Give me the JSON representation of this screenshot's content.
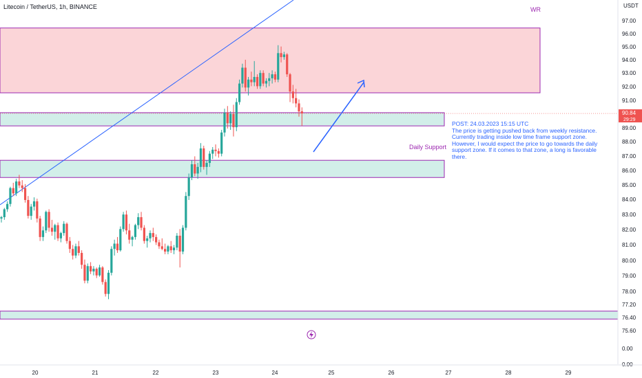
{
  "header": {
    "symbol_title": "Litecoin / TetherUS, 1h, BINANCE"
  },
  "annotations": {
    "zone_wr_label": "WR",
    "zone_daily_label": "Daily Support",
    "note_line1": "POST: 24.03.2023 15:15 UTC",
    "note_body": "The price is getting pushed back from weekly resistance. Currently trading inside low time frame support zone. However, I would expect the price to go towards the daily support zone. If it comes to that zone, a long is favorable there.",
    "price_tag_value": "90.84",
    "price_tag_countdown": "29:29"
  },
  "colors": {
    "up": "#26a69a",
    "down": "#ef5350",
    "resistance_fill": "#fbd5d8",
    "support_fill": "#d2eee9",
    "zone_border": "#9c27b0",
    "trendline": "#2962ff",
    "note": "#2962ff"
  },
  "chart_data": {
    "type": "candlestick",
    "title": "Litecoin / TetherUS, 1h, BINANCE",
    "x_ticks": [
      "20",
      "21",
      "22",
      "23",
      "24",
      "25",
      "26",
      "27",
      "28",
      "29"
    ],
    "y_axis_unit": "USDT",
    "y_ticks": [
      "97.00",
      "96.00",
      "95.00",
      "94.00",
      "93.00",
      "92.00",
      "91.00",
      "90.00",
      "89.00",
      "88.00",
      "87.00",
      "86.00",
      "85.00",
      "84.00",
      "83.00",
      "82.00",
      "81.00",
      "80.00",
      "79.00",
      "78.00",
      "77.20",
      "76.40",
      "75.60",
      "0.00",
      "0.00"
    ],
    "zones": [
      {
        "label": "WR",
        "type": "resistance",
        "from": 92.4,
        "to": 97.3
      },
      {
        "label": "",
        "type": "support",
        "from": 89.9,
        "to": 90.9
      },
      {
        "label": "Daily Support",
        "type": "support",
        "from": 86.0,
        "to": 87.3
      },
      {
        "label": "",
        "type": "support",
        "from": 75.3,
        "to": 75.9
      }
    ],
    "current_price": 90.84,
    "candles": [
      [
        82.9,
        83.1,
        82.6,
        83.0
      ],
      [
        83.0,
        83.7,
        82.8,
        83.6
      ],
      [
        83.6,
        84.2,
        83.4,
        84.0
      ],
      [
        84.0,
        85.3,
        83.8,
        85.2
      ],
      [
        85.2,
        85.6,
        84.6,
        84.8
      ],
      [
        84.8,
        85.9,
        84.6,
        85.7
      ],
      [
        85.7,
        86.2,
        85.2,
        85.4
      ],
      [
        85.4,
        85.8,
        84.9,
        85.2
      ],
      [
        85.2,
        85.5,
        84.1,
        84.3
      ],
      [
        84.3,
        84.6,
        82.9,
        83.1
      ],
      [
        83.1,
        84.0,
        82.8,
        83.8
      ],
      [
        83.8,
        84.5,
        83.5,
        84.2
      ],
      [
        84.2,
        84.4,
        82.6,
        82.9
      ],
      [
        82.9,
        83.1,
        81.2,
        81.5
      ],
      [
        81.5,
        82.3,
        81.2,
        82.0
      ],
      [
        82.0,
        83.5,
        81.8,
        83.4
      ],
      [
        83.4,
        83.6,
        81.9,
        82.2
      ],
      [
        82.2,
        82.8,
        81.6,
        81.9
      ],
      [
        81.9,
        82.5,
        81.3,
        82.4
      ],
      [
        82.4,
        82.6,
        81.2,
        81.4
      ],
      [
        81.4,
        81.9,
        81.1,
        81.8
      ],
      [
        81.8,
        82.7,
        81.6,
        82.5
      ],
      [
        82.5,
        82.6,
        81.0,
        81.2
      ],
      [
        81.2,
        81.5,
        80.3,
        80.6
      ],
      [
        80.6,
        80.9,
        79.8,
        80.1
      ],
      [
        80.1,
        81.0,
        79.9,
        80.8
      ],
      [
        80.8,
        81.2,
        80.1,
        80.3
      ],
      [
        80.3,
        80.5,
        79.1,
        79.4
      ],
      [
        79.4,
        79.8,
        78.0,
        78.2
      ],
      [
        78.2,
        79.5,
        78.0,
        79.3
      ],
      [
        79.3,
        79.6,
        78.7,
        78.9
      ],
      [
        78.9,
        79.3,
        78.6,
        79.1
      ],
      [
        79.1,
        79.2,
        78.4,
        78.6
      ],
      [
        78.6,
        79.4,
        78.5,
        79.2
      ],
      [
        79.2,
        79.3,
        77.9,
        78.1
      ],
      [
        78.1,
        78.3,
        77.0,
        77.2
      ],
      [
        77.2,
        79.0,
        76.8,
        78.8
      ],
      [
        78.8,
        80.8,
        78.6,
        80.6
      ],
      [
        80.6,
        81.3,
        80.1,
        81.0
      ],
      [
        81.0,
        81.5,
        80.3,
        80.5
      ],
      [
        80.5,
        82.3,
        80.4,
        82.1
      ],
      [
        82.1,
        83.4,
        81.9,
        83.2
      ],
      [
        83.2,
        83.5,
        81.7,
        82.0
      ],
      [
        82.0,
        82.5,
        81.0,
        81.3
      ],
      [
        81.3,
        81.6,
        80.8,
        81.5
      ],
      [
        81.5,
        82.5,
        81.3,
        82.4
      ],
      [
        82.4,
        83.3,
        82.1,
        83.0
      ],
      [
        83.0,
        83.4,
        82.0,
        82.2
      ],
      [
        82.2,
        82.4,
        81.0,
        81.2
      ],
      [
        81.2,
        81.6,
        80.7,
        81.4
      ],
      [
        81.4,
        82.0,
        81.1,
        81.8
      ],
      [
        81.8,
        82.2,
        81.2,
        81.5
      ],
      [
        81.5,
        81.7,
        80.9,
        81.1
      ],
      [
        81.1,
        81.3,
        80.6,
        80.8
      ],
      [
        80.8,
        81.4,
        80.5,
        80.6
      ],
      [
        80.6,
        81.0,
        80.2,
        80.4
      ],
      [
        80.4,
        80.9,
        80.2,
        80.8
      ],
      [
        80.8,
        81.2,
        80.3,
        80.5
      ],
      [
        80.5,
        80.9,
        80.2,
        80.7
      ],
      [
        80.7,
        81.8,
        80.5,
        81.6
      ],
      [
        81.6,
        82.1,
        79.2,
        80.4
      ],
      [
        80.4,
        82.4,
        80.2,
        82.2
      ],
      [
        82.2,
        84.9,
        82.0,
        84.6
      ],
      [
        84.6,
        86.3,
        84.3,
        86.0
      ],
      [
        86.0,
        87.3,
        85.8,
        87.0
      ],
      [
        87.0,
        87.6,
        86.1,
        86.3
      ],
      [
        86.3,
        87.1,
        85.9,
        86.8
      ],
      [
        86.8,
        88.6,
        86.4,
        88.2
      ],
      [
        88.2,
        88.4,
        86.6,
        86.8
      ],
      [
        86.8,
        87.3,
        86.2,
        87.1
      ],
      [
        87.1,
        88.0,
        86.8,
        87.8
      ],
      [
        87.8,
        88.3,
        87.4,
        88.1
      ],
      [
        88.1,
        88.5,
        87.6,
        88.0
      ],
      [
        88.0,
        88.2,
        87.5,
        87.8
      ],
      [
        87.8,
        89.6,
        87.6,
        89.4
      ],
      [
        89.4,
        91.2,
        89.1,
        90.9
      ],
      [
        90.9,
        91.4,
        89.7,
        90.1
      ],
      [
        90.1,
        91.0,
        89.6,
        90.8
      ],
      [
        90.8,
        91.5,
        89.1,
        89.8
      ],
      [
        89.8,
        92.0,
        89.5,
        91.7
      ],
      [
        91.7,
        93.4,
        91.5,
        93.1
      ],
      [
        93.1,
        94.6,
        92.8,
        94.3
      ],
      [
        94.3,
        94.9,
        92.5,
        92.8
      ],
      [
        92.8,
        93.6,
        92.2,
        93.4
      ],
      [
        93.4,
        94.0,
        92.9,
        93.2
      ],
      [
        93.2,
        94.8,
        92.9,
        93.6
      ],
      [
        93.6,
        93.8,
        92.7,
        92.9
      ],
      [
        92.9,
        94.1,
        92.7,
        93.9
      ],
      [
        93.9,
        94.1,
        92.9,
        93.1
      ],
      [
        93.1,
        93.5,
        92.8,
        93.3
      ],
      [
        93.3,
        93.9,
        92.9,
        93.5
      ],
      [
        93.5,
        94.1,
        93.1,
        93.8
      ],
      [
        93.8,
        94.0,
        93.2,
        93.4
      ],
      [
        93.4,
        96.0,
        93.2,
        95.4
      ],
      [
        95.4,
        95.9,
        94.7,
        95.1
      ],
      [
        95.1,
        95.5,
        94.9,
        95.3
      ],
      [
        95.3,
        95.4,
        93.6,
        93.8
      ],
      [
        93.8,
        93.9,
        91.7,
        92.5
      ],
      [
        92.5,
        93.0,
        91.6,
        92.0
      ],
      [
        92.0,
        92.7,
        91.3,
        91.6
      ],
      [
        91.6,
        91.9,
        90.6,
        91.0
      ],
      [
        91.0,
        91.3,
        89.9,
        90.84
      ]
    ]
  }
}
